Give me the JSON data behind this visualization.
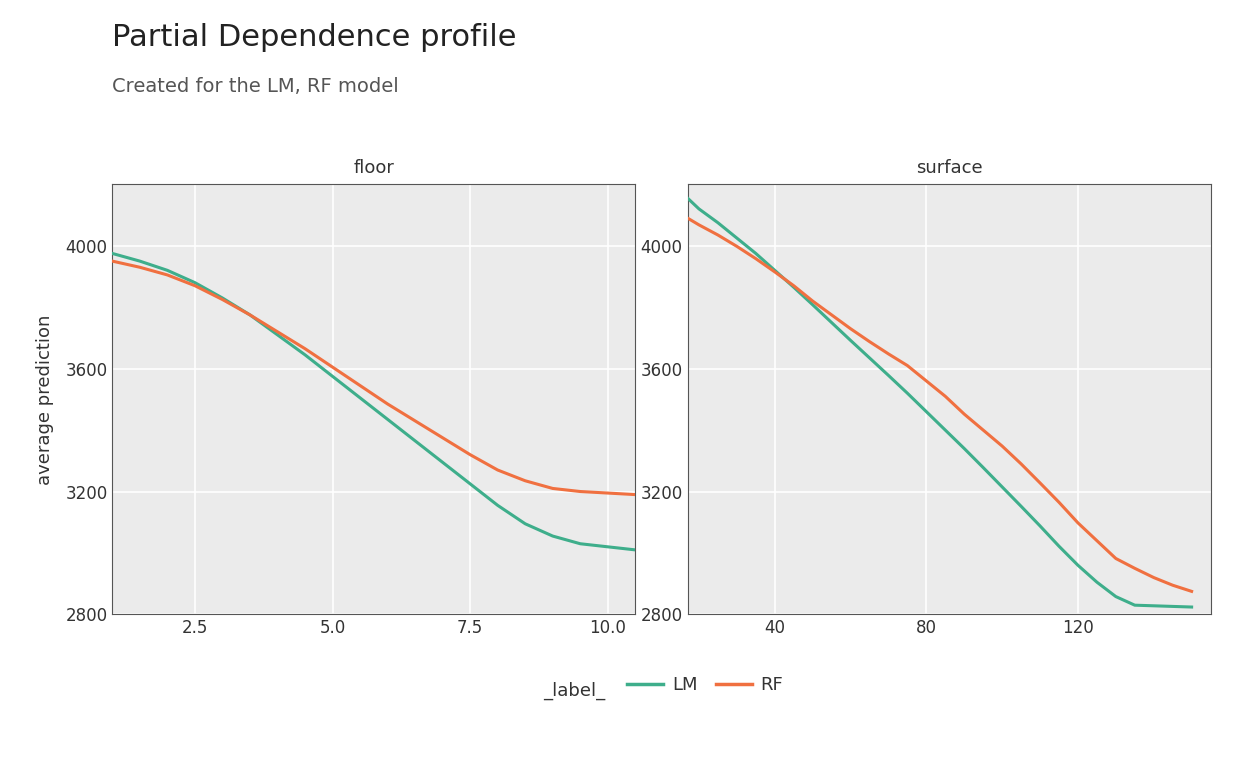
{
  "title": "Partial Dependence profile",
  "subtitle": "Created for the LM, RF model",
  "ylabel": "average prediction",
  "panel1_title": "floor",
  "panel2_title": "surface",
  "ylim": [
    2800,
    4200
  ],
  "yticks": [
    2800,
    3200,
    3600,
    4000
  ],
  "floor_xlim": [
    1.0,
    10.5
  ],
  "floor_xticks": [
    2.5,
    5.0,
    7.5,
    10.0
  ],
  "surface_xlim": [
    17,
    155
  ],
  "surface_xticks": [
    40,
    80,
    120
  ],
  "lm_color": "#3EAE8B",
  "rf_color": "#F07040",
  "line_width": 2.2,
  "panel_bg": "#EBEBEB",
  "title_fontsize": 22,
  "subtitle_fontsize": 14,
  "label_fontsize": 13,
  "tick_fontsize": 12,
  "legend_fontsize": 13,
  "floor_lm_x": [
    1.0,
    1.5,
    2.0,
    2.5,
    3.0,
    3.5,
    4.0,
    4.5,
    5.0,
    5.5,
    6.0,
    6.5,
    7.0,
    7.5,
    8.0,
    8.5,
    9.0,
    9.5,
    10.0,
    10.5
  ],
  "floor_lm_y": [
    3975,
    3950,
    3920,
    3880,
    3830,
    3775,
    3710,
    3645,
    3575,
    3505,
    3435,
    3365,
    3295,
    3225,
    3155,
    3095,
    3055,
    3030,
    3020,
    3010
  ],
  "floor_rf_x": [
    1.0,
    1.5,
    2.0,
    2.5,
    3.0,
    3.5,
    4.0,
    4.5,
    5.0,
    5.5,
    6.0,
    6.5,
    7.0,
    7.5,
    8.0,
    8.5,
    9.0,
    9.5,
    10.0,
    10.5
  ],
  "floor_rf_y": [
    3950,
    3930,
    3905,
    3870,
    3825,
    3775,
    3720,
    3665,
    3605,
    3545,
    3485,
    3430,
    3375,
    3320,
    3270,
    3235,
    3210,
    3200,
    3195,
    3190
  ],
  "surface_lm_x": [
    17,
    20,
    25,
    30,
    35,
    40,
    45,
    50,
    55,
    60,
    65,
    70,
    75,
    80,
    85,
    90,
    95,
    100,
    105,
    110,
    115,
    120,
    125,
    130,
    135,
    140,
    145,
    150
  ],
  "surface_lm_y": [
    4155,
    4120,
    4075,
    4025,
    3975,
    3920,
    3865,
    3808,
    3750,
    3692,
    3635,
    3578,
    3520,
    3460,
    3400,
    3340,
    3278,
    3215,
    3152,
    3088,
    3022,
    2960,
    2905,
    2858,
    2830,
    2828,
    2826,
    2824
  ],
  "surface_rf_x": [
    17,
    20,
    25,
    30,
    35,
    40,
    45,
    50,
    55,
    60,
    65,
    70,
    75,
    80,
    85,
    90,
    95,
    100,
    105,
    110,
    115,
    120,
    125,
    130,
    135,
    140,
    145,
    150
  ],
  "surface_rf_y": [
    4090,
    4068,
    4035,
    3998,
    3958,
    3915,
    3870,
    3820,
    3775,
    3730,
    3688,
    3648,
    3610,
    3560,
    3510,
    3452,
    3400,
    3348,
    3290,
    3228,
    3165,
    3098,
    3040,
    2982,
    2950,
    2920,
    2895,
    2875
  ]
}
